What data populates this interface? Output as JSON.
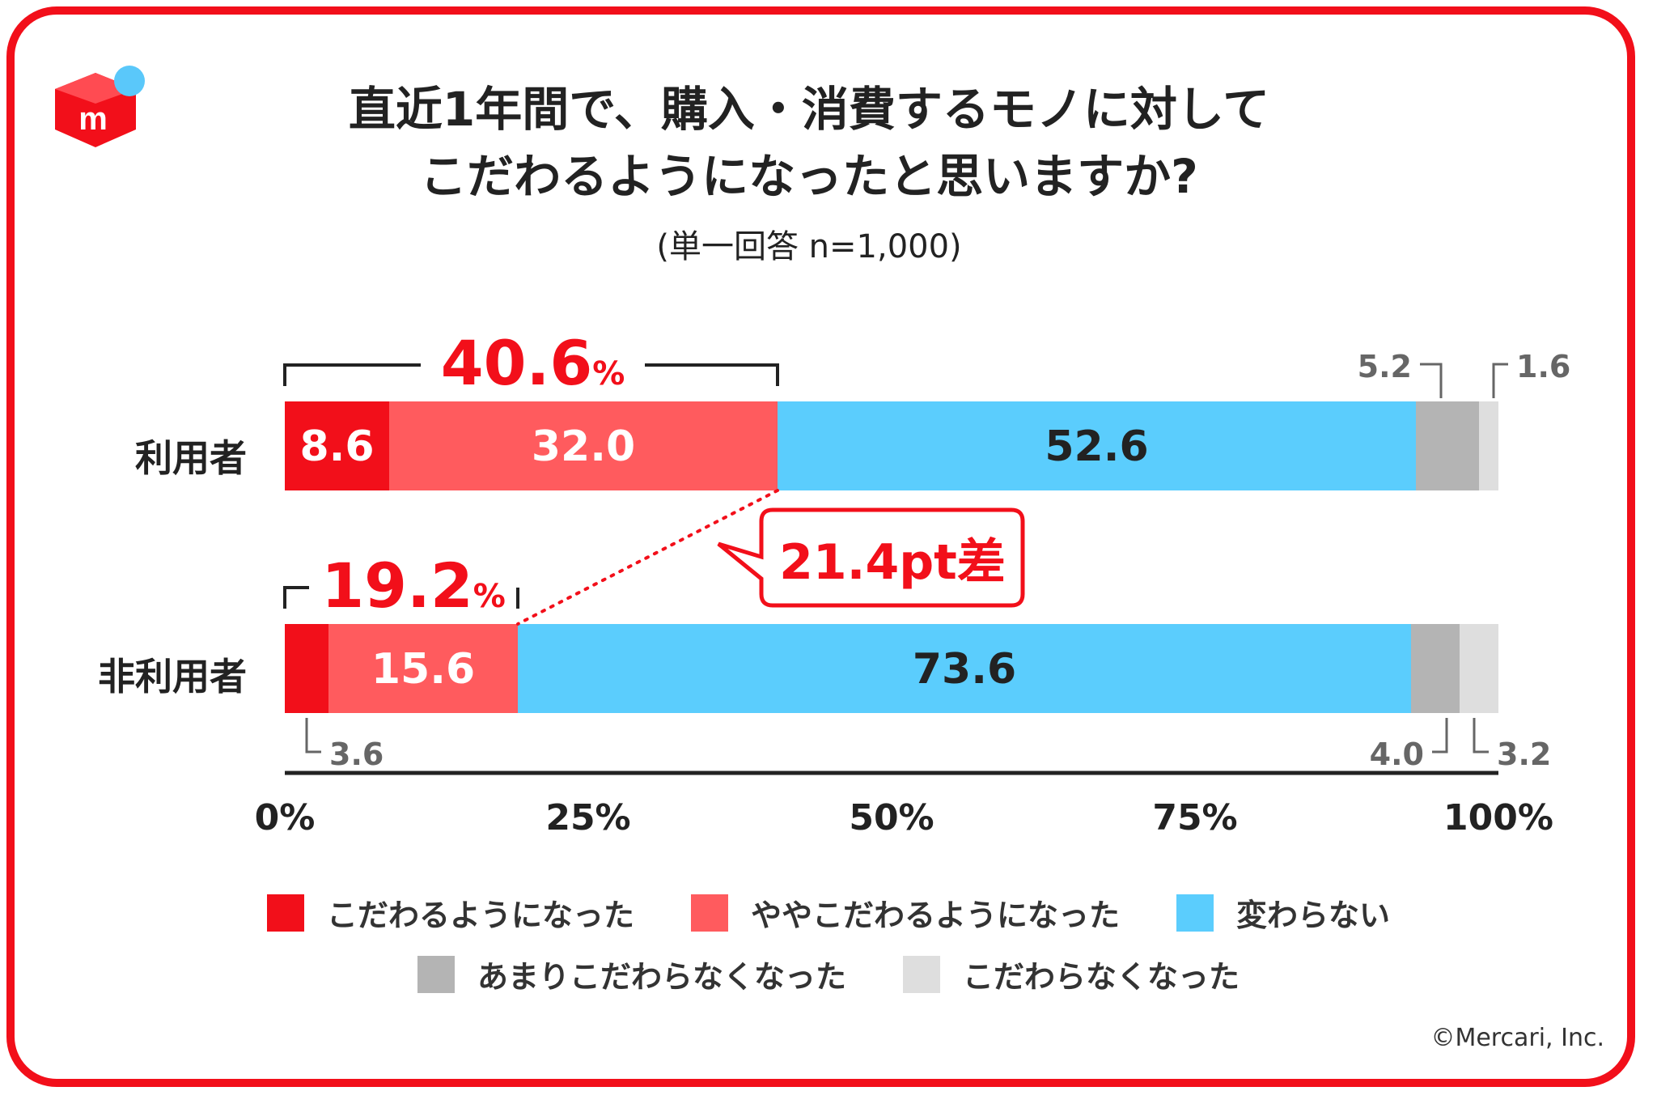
{
  "title_line1": "直近1年間で、購入・消費するモノに対して",
  "title_line2": "こだわるようになったと思いますか?",
  "subtitle": "(単一回答 n=1,000)",
  "copyright": "©Mercari, Inc.",
  "colors": {
    "frame": "#f20f1a",
    "logo_red": "#f20f1a",
    "logo_blue": "#5ac8fa"
  },
  "chart_data": {
    "type": "bar",
    "orientation": "horizontal",
    "stacked": true,
    "categories": [
      "利用者",
      "非利用者"
    ],
    "series": [
      {
        "name": "こだわるようになった",
        "values": [
          8.6,
          3.6
        ],
        "color": "#f20f1a"
      },
      {
        "name": "ややこだわるようになった",
        "values": [
          32.0,
          15.6
        ],
        "color": "#ff5b5e"
      },
      {
        "name": "変わらない",
        "values": [
          52.6,
          73.6
        ],
        "color": "#5bcdfd"
      },
      {
        "name": "あまりこだわらなくなった",
        "values": [
          5.2,
          4.0
        ],
        "color": "#b4b4b4"
      },
      {
        "name": "こだわらなくなった",
        "values": [
          1.6,
          3.2
        ],
        "color": "#dedede"
      }
    ],
    "value_labels": [
      [
        "8.6",
        "32.0",
        "52.6",
        "5.2",
        "1.6"
      ],
      [
        "3.6",
        "15.6",
        "73.6",
        "4.0",
        "3.2"
      ]
    ],
    "bracket_totals": [
      "40.6",
      "19.2"
    ],
    "percent_sign": "%",
    "difference_label": "21.4pt差",
    "xlim": [
      0,
      100
    ],
    "xticks": [
      "0%",
      "25%",
      "50%",
      "75%",
      "100%"
    ],
    "legend": "bottom"
  }
}
